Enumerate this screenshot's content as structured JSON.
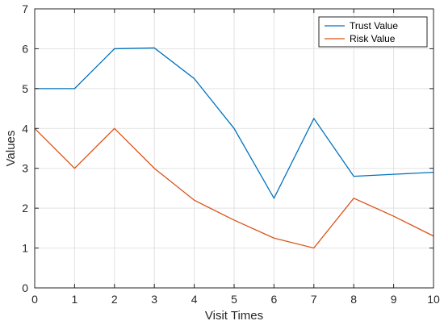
{
  "chart_data": {
    "type": "line",
    "title": "",
    "xlabel": "Visit Times",
    "ylabel": "Values",
    "xlim": [
      0,
      10
    ],
    "ylim": [
      0,
      7
    ],
    "xticks": [
      0,
      1,
      2,
      3,
      4,
      5,
      6,
      7,
      8,
      9,
      10
    ],
    "yticks": [
      0,
      1,
      2,
      3,
      4,
      5,
      6,
      7
    ],
    "grid": true,
    "legend_position": "top-right",
    "x": [
      0,
      1,
      2,
      3,
      4,
      5,
      6,
      7,
      8,
      9,
      10
    ],
    "series": [
      {
        "name": "Trust Value",
        "color": "#0072BD",
        "values": [
          5.0,
          5.0,
          6.0,
          6.02,
          5.25,
          4.0,
          2.25,
          4.25,
          2.8,
          2.85,
          2.9
        ]
      },
      {
        "name": "Risk Value",
        "color": "#D95319",
        "values": [
          4.0,
          3.0,
          4.0,
          3.0,
          2.2,
          1.7,
          1.25,
          1.0,
          2.25,
          1.8,
          1.3
        ]
      }
    ]
  }
}
